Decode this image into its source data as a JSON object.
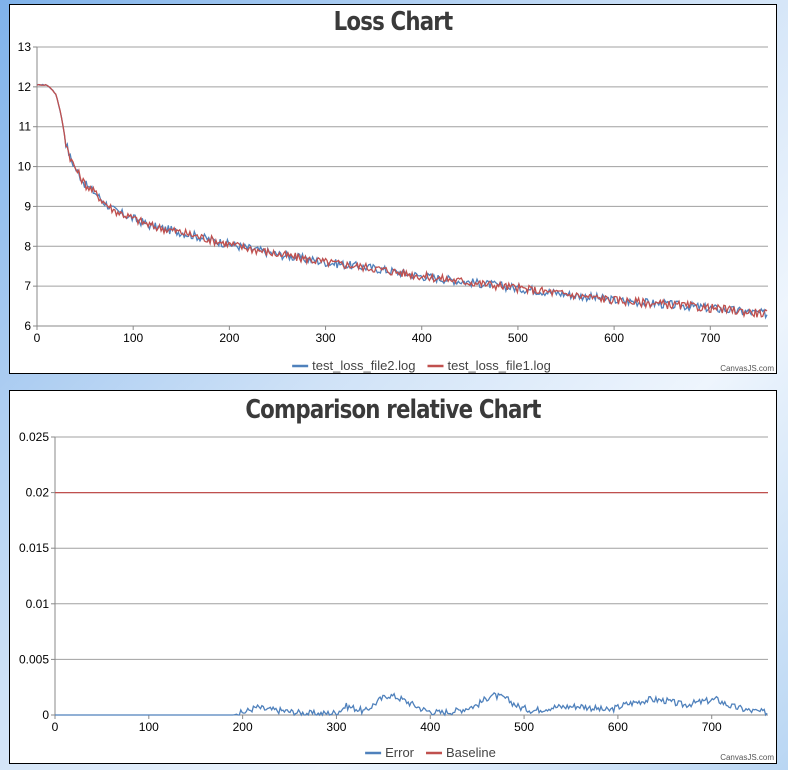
{
  "chart_data": [
    {
      "type": "line",
      "title": "Loss Chart",
      "xlim": [
        0,
        760
      ],
      "ylim": [
        6,
        13
      ],
      "x_ticks": [
        0,
        100,
        200,
        300,
        400,
        500,
        600,
        700
      ],
      "y_ticks": [
        6,
        7,
        8,
        9,
        10,
        11,
        12,
        13
      ],
      "grid": true,
      "legend_position": "bottom-center",
      "credit": "CanvasJS.com",
      "series": [
        {
          "name": "test_loss_file2.log",
          "color": "#4f81bc",
          "x": [
            0,
            5,
            10,
            15,
            20,
            25,
            30,
            35,
            40,
            50,
            60,
            70,
            80,
            100,
            120,
            150,
            200,
            250,
            300,
            350,
            400,
            450,
            500,
            550,
            600,
            650,
            700,
            760
          ],
          "y": [
            12.05,
            12.05,
            12.05,
            11.95,
            11.8,
            11.3,
            10.6,
            10.2,
            9.95,
            9.55,
            9.35,
            9.1,
            8.9,
            8.7,
            8.5,
            8.35,
            8.05,
            7.8,
            7.6,
            7.45,
            7.25,
            7.1,
            6.95,
            6.8,
            6.65,
            6.55,
            6.45,
            6.3
          ]
        },
        {
          "name": "test_loss_file1.log",
          "color": "#c0504e",
          "x": [
            0,
            5,
            10,
            15,
            20,
            25,
            30,
            35,
            40,
            50,
            60,
            70,
            80,
            100,
            120,
            150,
            200,
            250,
            300,
            350,
            400,
            450,
            500,
            550,
            600,
            650,
            700,
            760
          ],
          "y": [
            12.05,
            12.05,
            12.05,
            11.95,
            11.8,
            11.3,
            10.6,
            10.2,
            9.95,
            9.55,
            9.35,
            9.1,
            8.9,
            8.7,
            8.5,
            8.35,
            8.05,
            7.8,
            7.6,
            7.45,
            7.25,
            7.1,
            6.95,
            6.8,
            6.65,
            6.55,
            6.45,
            6.3
          ]
        }
      ]
    },
    {
      "type": "line",
      "title": "Comparison relative Chart",
      "xlim": [
        0,
        760
      ],
      "ylim": [
        0,
        0.025
      ],
      "x_ticks": [
        0,
        100,
        200,
        300,
        400,
        500,
        600,
        700
      ],
      "y_ticks": [
        0,
        0.005,
        0.01,
        0.015,
        0.02,
        0.025
      ],
      "grid": true,
      "legend_position": "bottom-center",
      "credit": "CanvasJS.com",
      "series": [
        {
          "name": "Error",
          "color": "#4f81bc",
          "x": [
            0,
            100,
            190,
            200,
            215,
            225,
            240,
            260,
            280,
            300,
            310,
            320,
            330,
            345,
            355,
            365,
            380,
            395,
            410,
            430,
            450,
            465,
            480,
            495,
            510,
            530,
            560,
            590,
            610,
            635,
            650,
            670,
            690,
            705,
            720,
            740,
            760
          ],
          "y": [
            0,
            0,
            0,
            0.0002,
            0.0007,
            0.0005,
            0.0004,
            0.0002,
            0.0001,
            0.0002,
            0.0008,
            0.0006,
            0.0003,
            0.0013,
            0.0018,
            0.0016,
            0.001,
            0.0004,
            0.0002,
            0.0004,
            0.0009,
            0.0018,
            0.0015,
            0.0007,
            0.0004,
            0.0007,
            0.0008,
            0.0004,
            0.001,
            0.0014,
            0.0013,
            0.0009,
            0.0012,
            0.0014,
            0.0008,
            0.0004,
            0.0002
          ]
        },
        {
          "name": "Baseline",
          "color": "#c0504e",
          "x": [
            0,
            760
          ],
          "y": [
            0.02,
            0.02
          ]
        }
      ]
    }
  ]
}
